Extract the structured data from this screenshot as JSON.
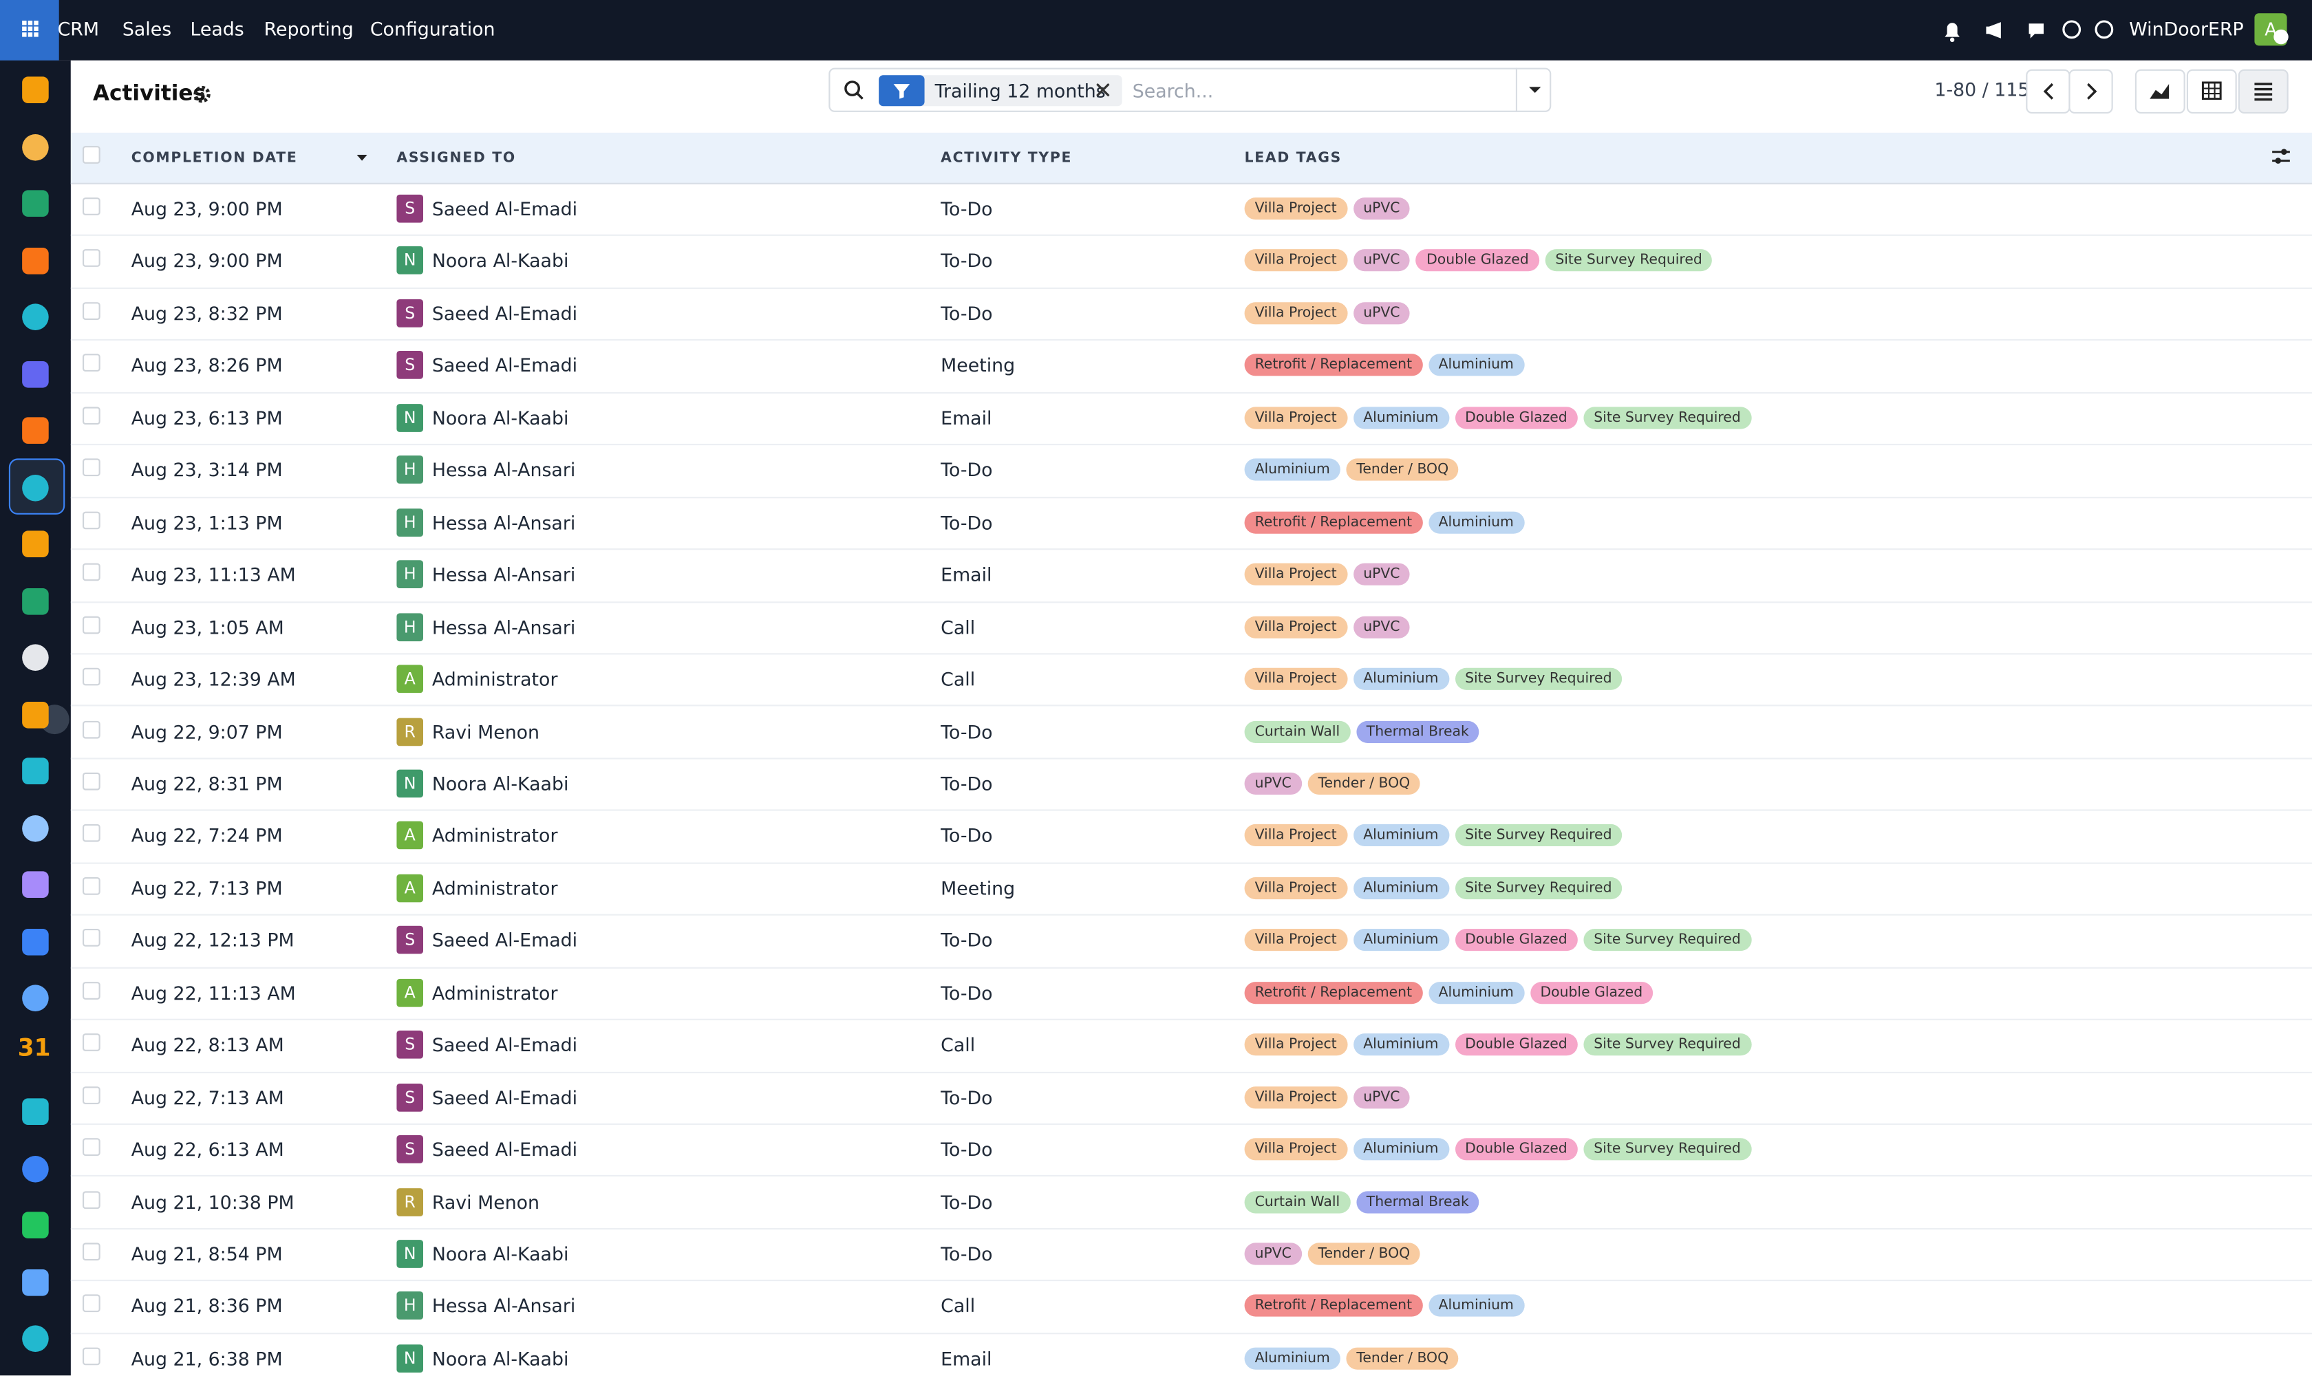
{
  "navbar": {
    "menu": [
      "CRM",
      "Sales",
      "Leads",
      "Reporting",
      "Configuration"
    ],
    "company": "WinDoorERP",
    "user_avatar": "A"
  },
  "sidebar": {
    "calendar_label": "31"
  },
  "control_panel": {
    "title": "Activities",
    "filter": "Trailing 12 months",
    "search_placeholder": "Search...",
    "pager": "1-80 / 115"
  },
  "table": {
    "columns": [
      "COMPLETION DATE",
      "ASSIGNED TO",
      "ACTIVITY TYPE",
      "LEAD TAGS"
    ],
    "rows": [
      {
        "date": "Aug 23, 9:00 PM",
        "avatar": "S",
        "avatar_color": "#8e3b7a",
        "assigned": "Saeed Al-Emadi",
        "type": "To-Do",
        "tags": [
          {
            "label": "Villa Project",
            "color": "#f8cba0"
          },
          {
            "label": "uPVC",
            "color": "#e2b3d4"
          }
        ]
      },
      {
        "date": "Aug 23, 9:00 PM",
        "avatar": "N",
        "avatar_color": "#3f9a6a",
        "assigned": "Noora Al-Kaabi",
        "type": "To-Do",
        "tags": [
          {
            "label": "Villa Project",
            "color": "#f8cba0"
          },
          {
            "label": "uPVC",
            "color": "#e2b3d4"
          },
          {
            "label": "Double Glazed",
            "color": "#f6a6c9"
          },
          {
            "label": "Site Survey Required",
            "color": "#bfe6bf"
          }
        ]
      },
      {
        "date": "Aug 23, 8:32 PM",
        "avatar": "S",
        "avatar_color": "#8e3b7a",
        "assigned": "Saeed Al-Emadi",
        "type": "To-Do",
        "tags": [
          {
            "label": "Villa Project",
            "color": "#f8cba0"
          },
          {
            "label": "uPVC",
            "color": "#e2b3d4"
          }
        ]
      },
      {
        "date": "Aug 23, 8:26 PM",
        "avatar": "S",
        "avatar_color": "#8e3b7a",
        "assigned": "Saeed Al-Emadi",
        "type": "Meeting",
        "tags": [
          {
            "label": "Retrofit / Replacement",
            "color": "#f28c8c"
          },
          {
            "label": "Aluminium",
            "color": "#bdd7f2"
          }
        ]
      },
      {
        "date": "Aug 23, 6:13 PM",
        "avatar": "N",
        "avatar_color": "#3f9a6a",
        "assigned": "Noora Al-Kaabi",
        "type": "Email",
        "tags": [
          {
            "label": "Villa Project",
            "color": "#f8cba0"
          },
          {
            "label": "Aluminium",
            "color": "#bdd7f2"
          },
          {
            "label": "Double Glazed",
            "color": "#f6a6c9"
          },
          {
            "label": "Site Survey Required",
            "color": "#bfe6bf"
          }
        ]
      },
      {
        "date": "Aug 23, 3:14 PM",
        "avatar": "H",
        "avatar_color": "#4a9a6e",
        "assigned": "Hessa Al-Ansari",
        "type": "To-Do",
        "tags": [
          {
            "label": "Aluminium",
            "color": "#bdd7f2"
          },
          {
            "label": "Tender / BOQ",
            "color": "#f8cba0"
          }
        ]
      },
      {
        "date": "Aug 23, 1:13 PM",
        "avatar": "H",
        "avatar_color": "#4a9a6e",
        "assigned": "Hessa Al-Ansari",
        "type": "To-Do",
        "tags": [
          {
            "label": "Retrofit / Replacement",
            "color": "#f28c8c"
          },
          {
            "label": "Aluminium",
            "color": "#bdd7f2"
          }
        ]
      },
      {
        "date": "Aug 23, 11:13 AM",
        "avatar": "H",
        "avatar_color": "#4a9a6e",
        "assigned": "Hessa Al-Ansari",
        "type": "Email",
        "tags": [
          {
            "label": "Villa Project",
            "color": "#f8cba0"
          },
          {
            "label": "uPVC",
            "color": "#e2b3d4"
          }
        ]
      },
      {
        "date": "Aug 23, 1:05 AM",
        "avatar": "H",
        "avatar_color": "#4a9a6e",
        "assigned": "Hessa Al-Ansari",
        "type": "Call",
        "tags": [
          {
            "label": "Villa Project",
            "color": "#f8cba0"
          },
          {
            "label": "uPVC",
            "color": "#e2b3d4"
          }
        ]
      },
      {
        "date": "Aug 23, 12:39 AM",
        "avatar": "A",
        "avatar_color": "#6fb33f",
        "assigned": "Administrator",
        "type": "Call",
        "tags": [
          {
            "label": "Villa Project",
            "color": "#f8cba0"
          },
          {
            "label": "Aluminium",
            "color": "#bdd7f2"
          },
          {
            "label": "Site Survey Required",
            "color": "#bfe6bf"
          }
        ]
      },
      {
        "date": "Aug 22, 9:07 PM",
        "avatar": "R",
        "avatar_color": "#b8a03e",
        "assigned": "Ravi Menon",
        "type": "To-Do",
        "tags": [
          {
            "label": "Curtain Wall",
            "color": "#bfe6bf"
          },
          {
            "label": "Thermal Break",
            "color": "#9ea8ef"
          }
        ]
      },
      {
        "date": "Aug 22, 8:31 PM",
        "avatar": "N",
        "avatar_color": "#3f9a6a",
        "assigned": "Noora Al-Kaabi",
        "type": "To-Do",
        "tags": [
          {
            "label": "uPVC",
            "color": "#e2b3d4"
          },
          {
            "label": "Tender / BOQ",
            "color": "#f8cba0"
          }
        ]
      },
      {
        "date": "Aug 22, 7:24 PM",
        "avatar": "A",
        "avatar_color": "#6fb33f",
        "assigned": "Administrator",
        "type": "To-Do",
        "tags": [
          {
            "label": "Villa Project",
            "color": "#f8cba0"
          },
          {
            "label": "Aluminium",
            "color": "#bdd7f2"
          },
          {
            "label": "Site Survey Required",
            "color": "#bfe6bf"
          }
        ]
      },
      {
        "date": "Aug 22, 7:13 PM",
        "avatar": "A",
        "avatar_color": "#6fb33f",
        "assigned": "Administrator",
        "type": "Meeting",
        "tags": [
          {
            "label": "Villa Project",
            "color": "#f8cba0"
          },
          {
            "label": "Aluminium",
            "color": "#bdd7f2"
          },
          {
            "label": "Site Survey Required",
            "color": "#bfe6bf"
          }
        ]
      },
      {
        "date": "Aug 22, 12:13 PM",
        "avatar": "S",
        "avatar_color": "#8e3b7a",
        "assigned": "Saeed Al-Emadi",
        "type": "To-Do",
        "tags": [
          {
            "label": "Villa Project",
            "color": "#f8cba0"
          },
          {
            "label": "Aluminium",
            "color": "#bdd7f2"
          },
          {
            "label": "Double Glazed",
            "color": "#f6a6c9"
          },
          {
            "label": "Site Survey Required",
            "color": "#bfe6bf"
          }
        ]
      },
      {
        "date": "Aug 22, 11:13 AM",
        "avatar": "A",
        "avatar_color": "#6fb33f",
        "assigned": "Administrator",
        "type": "To-Do",
        "tags": [
          {
            "label": "Retrofit / Replacement",
            "color": "#f28c8c"
          },
          {
            "label": "Aluminium",
            "color": "#bdd7f2"
          },
          {
            "label": "Double Glazed",
            "color": "#f6a6c9"
          }
        ]
      },
      {
        "date": "Aug 22, 8:13 AM",
        "avatar": "S",
        "avatar_color": "#8e3b7a",
        "assigned": "Saeed Al-Emadi",
        "type": "Call",
        "tags": [
          {
            "label": "Villa Project",
            "color": "#f8cba0"
          },
          {
            "label": "Aluminium",
            "color": "#bdd7f2"
          },
          {
            "label": "Double Glazed",
            "color": "#f6a6c9"
          },
          {
            "label": "Site Survey Required",
            "color": "#bfe6bf"
          }
        ]
      },
      {
        "date": "Aug 22, 7:13 AM",
        "avatar": "S",
        "avatar_color": "#8e3b7a",
        "assigned": "Saeed Al-Emadi",
        "type": "To-Do",
        "tags": [
          {
            "label": "Villa Project",
            "color": "#f8cba0"
          },
          {
            "label": "uPVC",
            "color": "#e2b3d4"
          }
        ]
      },
      {
        "date": "Aug 22, 6:13 AM",
        "avatar": "S",
        "avatar_color": "#8e3b7a",
        "assigned": "Saeed Al-Emadi",
        "type": "To-Do",
        "tags": [
          {
            "label": "Villa Project",
            "color": "#f8cba0"
          },
          {
            "label": "Aluminium",
            "color": "#bdd7f2"
          },
          {
            "label": "Double Glazed",
            "color": "#f6a6c9"
          },
          {
            "label": "Site Survey Required",
            "color": "#bfe6bf"
          }
        ]
      },
      {
        "date": "Aug 21, 10:38 PM",
        "avatar": "R",
        "avatar_color": "#b8a03e",
        "assigned": "Ravi Menon",
        "type": "To-Do",
        "tags": [
          {
            "label": "Curtain Wall",
            "color": "#bfe6bf"
          },
          {
            "label": "Thermal Break",
            "color": "#9ea8ef"
          }
        ]
      },
      {
        "date": "Aug 21, 8:54 PM",
        "avatar": "N",
        "avatar_color": "#3f9a6a",
        "assigned": "Noora Al-Kaabi",
        "type": "To-Do",
        "tags": [
          {
            "label": "uPVC",
            "color": "#e2b3d4"
          },
          {
            "label": "Tender / BOQ",
            "color": "#f8cba0"
          }
        ]
      },
      {
        "date": "Aug 21, 8:36 PM",
        "avatar": "H",
        "avatar_color": "#4a9a6e",
        "assigned": "Hessa Al-Ansari",
        "type": "Call",
        "tags": [
          {
            "label": "Retrofit / Replacement",
            "color": "#f28c8c"
          },
          {
            "label": "Aluminium",
            "color": "#bdd7f2"
          }
        ]
      },
      {
        "date": "Aug 21, 6:38 PM",
        "avatar": "N",
        "avatar_color": "#3f9a6a",
        "assigned": "Noora Al-Kaabi",
        "type": "Email",
        "tags": [
          {
            "label": "Aluminium",
            "color": "#bdd7f2"
          },
          {
            "label": "Tender / BOQ",
            "color": "#f8cba0"
          }
        ]
      }
    ]
  }
}
